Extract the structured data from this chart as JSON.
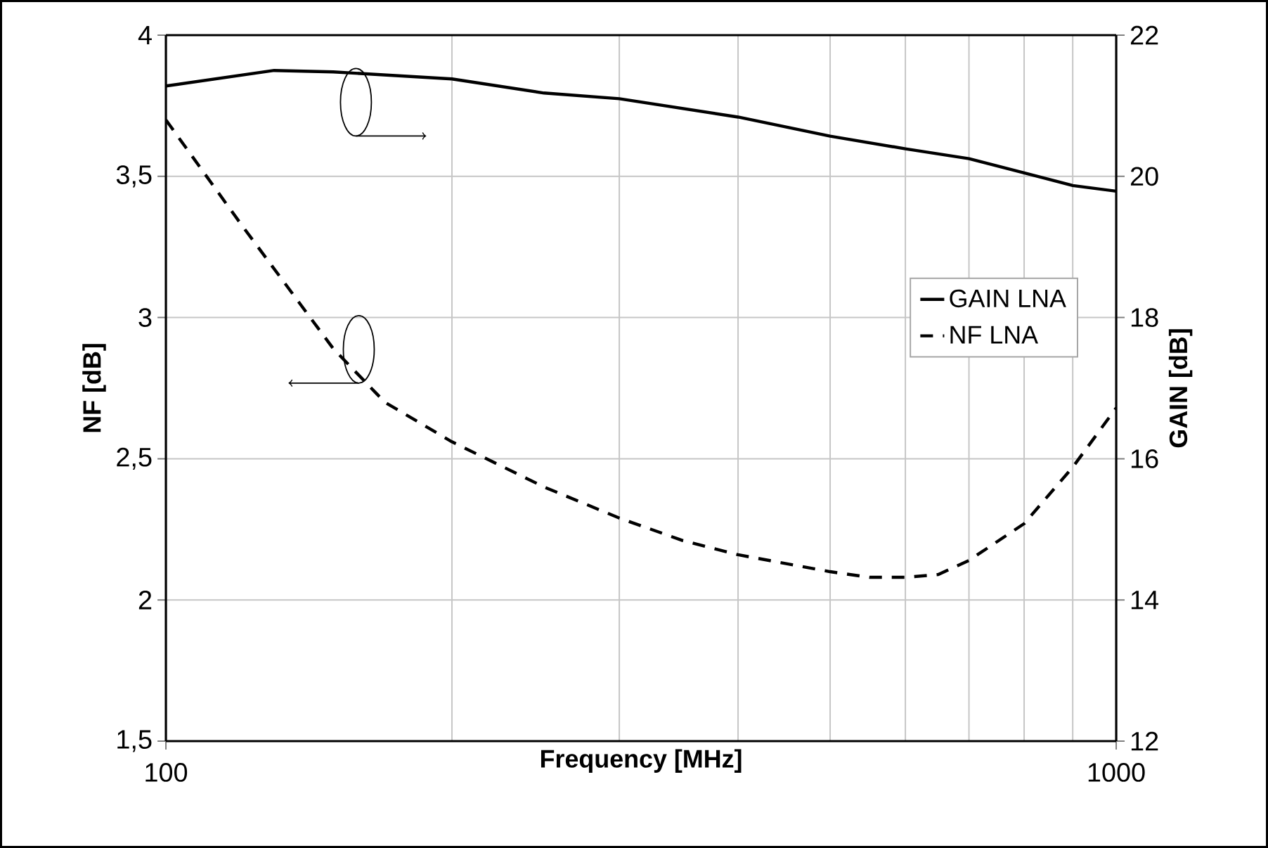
{
  "chart_data": {
    "type": "line",
    "xlabel": "Frequency   [MHz]",
    "ylabel": "NF   [dB]",
    "y2label": "GAIN   [dB]",
    "log": "x",
    "grid": true,
    "legend": "right",
    "marker": "none",
    "xlim": [
      100,
      1000
    ],
    "xticks": [
      100,
      1000
    ],
    "ylim": [
      1.5,
      4
    ],
    "yticks": [
      {
        "value": 1.5,
        "label": "1,5"
      },
      2,
      {
        "value": 2.5,
        "label": "2,5"
      },
      3,
      {
        "value": 3.5,
        "label": "3,5"
      },
      4
    ],
    "y2lim": [
      12,
      22
    ],
    "y2ticks": [
      12,
      14,
      16,
      18,
      20,
      22
    ],
    "series": [
      {
        "name": "GAIN LNA",
        "color": "#000000",
        "axis": "y2",
        "line_style": "solid",
        "x": [
          100,
          130,
          150,
          200,
          250,
          300,
          400,
          500,
          600,
          700,
          800,
          900,
          1000
        ],
        "values": [
          21.28,
          21.5,
          21.48,
          21.38,
          21.18,
          21.1,
          20.84,
          20.57,
          20.39,
          20.25,
          20.05,
          19.87,
          19.79
        ]
      },
      {
        "name": "NF LNA",
        "color": "#000000",
        "axis": "y",
        "line_style": "dashed",
        "x": [
          100,
          120,
          150,
          170,
          200,
          250,
          300,
          350,
          400,
          500,
          550,
          600,
          650,
          700,
          800,
          900,
          1000
        ],
        "values": [
          3.7,
          3.33,
          2.89,
          2.7,
          2.56,
          2.4,
          2.29,
          2.21,
          2.16,
          2.1,
          2.08,
          2.08,
          2.09,
          2.14,
          2.27,
          2.47,
          2.68
        ]
      }
    ]
  }
}
